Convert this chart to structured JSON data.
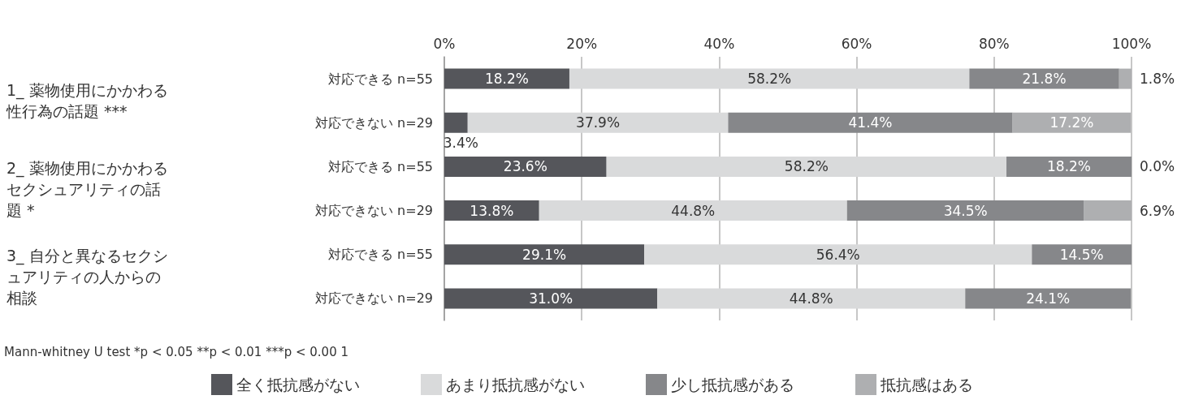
{
  "chart_data": {
    "type": "bar",
    "orientation": "horizontal",
    "stacked": true,
    "categories": [
      "対応できる n=55",
      "対応できない n=29",
      "対応できる n=55",
      "対応できない n=29",
      "対応できる n=55",
      "対応できない n=29"
    ],
    "series": [
      {
        "name": "全く抵抗感がない",
        "color": "#55565b",
        "values": [
          18.2,
          3.4,
          23.6,
          13.8,
          29.1,
          31.0
        ],
        "value_labels": [
          "18.2%",
          "3.4%",
          "23.6%",
          "13.8%",
          "29.1%",
          "31.0%"
        ]
      },
      {
        "name": "あまり抵抗感がない",
        "color": "#d9dadb",
        "values": [
          58.2,
          37.9,
          58.2,
          44.8,
          56.4,
          44.8
        ],
        "value_labels": [
          "58.2%",
          "37.9%",
          "58.2%",
          "44.8%",
          "56.4%",
          "44.8%"
        ]
      },
      {
        "name": "少し抵抗感がある",
        "color": "#86878a",
        "values": [
          21.8,
          41.4,
          18.2,
          34.5,
          14.5,
          24.1
        ],
        "value_labels": [
          "21.8%",
          "41.4%",
          "18.2%",
          "34.5%",
          "14.5%",
          "24.1%"
        ]
      },
      {
        "name": "抵抗感はある",
        "color": "#aeafb1",
        "values": [
          1.8,
          17.2,
          0.0,
          6.9,
          null,
          null
        ],
        "value_labels": [
          "1.8%",
          "17.2%",
          "0.0%",
          "6.9%",
          null,
          null
        ]
      }
    ],
    "xlim": [
      0,
      100
    ],
    "xticks": [
      {
        "value": 0,
        "label": "0%"
      },
      {
        "value": 20,
        "label": "20%"
      },
      {
        "value": 40,
        "label": "40%"
      },
      {
        "value": 60,
        "label": "60%"
      },
      {
        "value": 80,
        "label": "80%"
      },
      {
        "value": 100,
        "label": "100%"
      }
    ],
    "grid": "x",
    "legend": "bottom",
    "annotations": [
      "1_ 薬物使用にかかわる性行為の話題 ***",
      "2_ 薬物使用にかかわるセクシュアリティの話題 *",
      "3_ 自分と異なるセクシュアリティの人からの相談",
      "Mann-whitney U test *p < 0.05 **p < 0.01 ***p < 0.00 1"
    ]
  }
}
